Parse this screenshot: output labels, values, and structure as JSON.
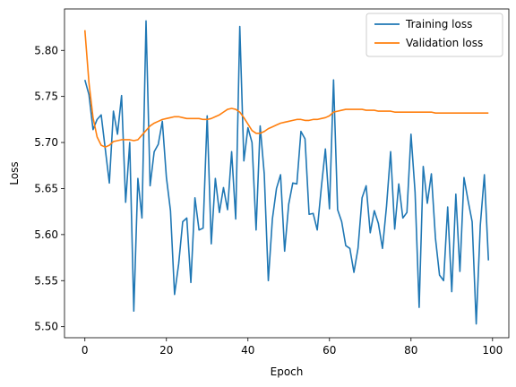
{
  "chart_data": {
    "type": "line",
    "xlabel": "Epoch",
    "ylabel": "Loss",
    "xlim": [
      -5,
      104
    ],
    "ylim": [
      5.488,
      5.845
    ],
    "x_ticks": [
      0,
      20,
      40,
      60,
      80,
      100
    ],
    "y_ticks": [
      5.5,
      5.55,
      5.6,
      5.65,
      5.7,
      5.75,
      5.8
    ],
    "y_tick_labels": [
      "5.50",
      "5.55",
      "5.60",
      "5.65",
      "5.70",
      "5.75",
      "5.80"
    ],
    "x_tick_labels": [
      "0",
      "20",
      "40",
      "60",
      "80",
      "100"
    ],
    "grid": false,
    "legend_position": "top-right",
    "series": [
      {
        "name": "Training loss",
        "color": "#1f77b4",
        "values": [
          5.768,
          5.752,
          5.714,
          5.725,
          5.73,
          5.693,
          5.656,
          5.734,
          5.709,
          5.751,
          5.635,
          5.7,
          5.517,
          5.661,
          5.618,
          5.832,
          5.653,
          5.69,
          5.698,
          5.723,
          5.662,
          5.626,
          5.535,
          5.568,
          5.614,
          5.618,
          5.548,
          5.64,
          5.605,
          5.607,
          5.729,
          5.59,
          5.661,
          5.624,
          5.651,
          5.627,
          5.69,
          5.617,
          5.826,
          5.68,
          5.716,
          5.7,
          5.605,
          5.718,
          5.666,
          5.55,
          5.617,
          5.65,
          5.665,
          5.582,
          5.633,
          5.656,
          5.655,
          5.712,
          5.704,
          5.622,
          5.623,
          5.605,
          5.651,
          5.693,
          5.628,
          5.768,
          5.627,
          5.614,
          5.588,
          5.585,
          5.559,
          5.585,
          5.64,
          5.653,
          5.602,
          5.626,
          5.612,
          5.585,
          5.631,
          5.69,
          5.606,
          5.655,
          5.618,
          5.624,
          5.709,
          5.646,
          5.521,
          5.674,
          5.634,
          5.666,
          5.596,
          5.556,
          5.55,
          5.63,
          5.538,
          5.644,
          5.56,
          5.662,
          5.637,
          5.614,
          5.503,
          5.61,
          5.665,
          5.572
        ]
      },
      {
        "name": "Validation loss",
        "color": "#ff7f0e",
        "values": [
          5.822,
          5.765,
          5.727,
          5.706,
          5.697,
          5.695,
          5.697,
          5.701,
          5.702,
          5.703,
          5.703,
          5.703,
          5.702,
          5.703,
          5.708,
          5.713,
          5.718,
          5.721,
          5.723,
          5.725,
          5.726,
          5.727,
          5.728,
          5.728,
          5.727,
          5.726,
          5.726,
          5.726,
          5.726,
          5.725,
          5.725,
          5.726,
          5.728,
          5.73,
          5.733,
          5.736,
          5.737,
          5.736,
          5.733,
          5.727,
          5.72,
          5.713,
          5.71,
          5.71,
          5.712,
          5.715,
          5.717,
          5.719,
          5.721,
          5.722,
          5.723,
          5.724,
          5.725,
          5.725,
          5.724,
          5.724,
          5.725,
          5.725,
          5.726,
          5.727,
          5.729,
          5.733,
          5.734,
          5.735,
          5.736,
          5.736,
          5.736,
          5.736,
          5.736,
          5.735,
          5.735,
          5.735,
          5.734,
          5.734,
          5.734,
          5.734,
          5.733,
          5.733,
          5.733,
          5.733,
          5.733,
          5.733,
          5.733,
          5.733,
          5.733,
          5.733,
          5.732,
          5.732,
          5.732,
          5.732,
          5.732,
          5.732,
          5.732,
          5.732,
          5.732,
          5.732,
          5.732,
          5.732,
          5.732,
          5.732
        ]
      }
    ]
  }
}
